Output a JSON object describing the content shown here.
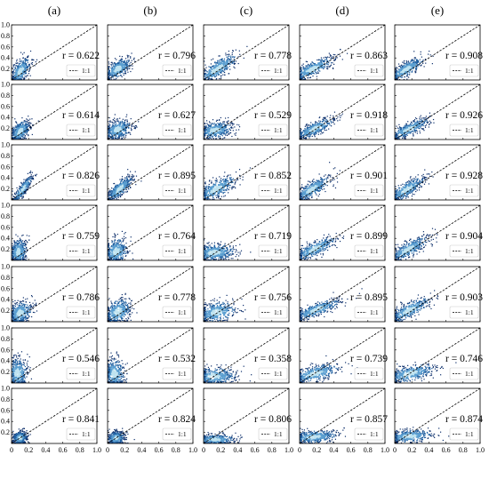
{
  "chart_data": {
    "type": "scatter",
    "column_labels": [
      "(a)",
      "(b)",
      "(c)",
      "(d)",
      "(e)"
    ],
    "x_tick_labels": [
      "0",
      "0.2",
      "0.4",
      "0.6",
      "0.8",
      "1.0"
    ],
    "y_tick_labels": [
      "0.2",
      "0.4",
      "0.6",
      "0.8",
      "1.0"
    ],
    "xlim": [
      0,
      1.0
    ],
    "ylim": [
      0,
      1.0
    ],
    "r_prefix": "r = ",
    "legend_label": "1:1",
    "r_values": [
      [
        "0.622",
        "0.796",
        "0.778",
        "0.863",
        "0.908"
      ],
      [
        "0.614",
        "0.627",
        "0.529",
        "0.918",
        "0.926"
      ],
      [
        "0.826",
        "0.895",
        "0.852",
        "0.901",
        "0.928"
      ],
      [
        "0.759",
        "0.764",
        "0.719",
        "0.899",
        "0.904"
      ],
      [
        "0.786",
        "0.778",
        "0.756",
        "0.895",
        "0.903"
      ],
      [
        "0.546",
        "0.532",
        "0.358",
        "0.739",
        "0.746"
      ],
      [
        "0.841",
        "0.824",
        "0.806",
        "0.857",
        "0.874"
      ]
    ],
    "density_clusters": [
      [
        [
          0.1,
          0.15,
          0.06,
          0.13,
          0.6
        ],
        [
          0.12,
          0.2,
          0.08,
          0.1,
          0.6
        ],
        [
          0.16,
          0.2,
          0.12,
          0.14,
          0.8
        ],
        [
          0.15,
          0.2,
          0.13,
          0.11,
          0.8
        ],
        [
          0.13,
          0.19,
          0.11,
          0.11,
          0.8
        ]
      ],
      [
        [
          0.1,
          0.15,
          0.06,
          0.1,
          0.5
        ],
        [
          0.12,
          0.18,
          0.08,
          0.09,
          0.3
        ],
        [
          0.14,
          0.17,
          0.1,
          0.08,
          0.3
        ],
        [
          0.18,
          0.2,
          0.12,
          0.1,
          0.8
        ],
        [
          0.17,
          0.19,
          0.12,
          0.1,
          0.8
        ]
      ],
      [
        [
          0.13,
          0.19,
          0.06,
          0.13,
          0.9
        ],
        [
          0.14,
          0.2,
          0.08,
          0.12,
          0.8
        ],
        [
          0.15,
          0.2,
          0.12,
          0.12,
          0.7
        ],
        [
          0.14,
          0.19,
          0.11,
          0.12,
          0.8
        ],
        [
          0.14,
          0.19,
          0.11,
          0.12,
          0.8
        ]
      ],
      [
        [
          0.08,
          0.15,
          0.05,
          0.12,
          0.2
        ],
        [
          0.1,
          0.16,
          0.07,
          0.12,
          0.2
        ],
        [
          0.12,
          0.14,
          0.13,
          0.08,
          0.2
        ],
        [
          0.18,
          0.21,
          0.13,
          0.11,
          0.8
        ],
        [
          0.16,
          0.2,
          0.12,
          0.12,
          0.8
        ]
      ],
      [
        [
          0.1,
          0.16,
          0.07,
          0.11,
          0.3
        ],
        [
          0.12,
          0.18,
          0.08,
          0.12,
          0.3
        ],
        [
          0.15,
          0.17,
          0.12,
          0.1,
          0.3
        ],
        [
          0.2,
          0.22,
          0.14,
          0.1,
          0.8
        ],
        [
          0.17,
          0.21,
          0.13,
          0.12,
          0.8
        ]
      ],
      [
        [
          0.07,
          0.18,
          0.06,
          0.14,
          0.0
        ],
        [
          0.08,
          0.17,
          0.06,
          0.14,
          0.0
        ],
        [
          0.12,
          0.12,
          0.14,
          0.08,
          0.1
        ],
        [
          0.18,
          0.17,
          0.15,
          0.09,
          0.6
        ],
        [
          0.18,
          0.17,
          0.15,
          0.09,
          0.6
        ]
      ],
      [
        [
          0.1,
          0.1,
          0.04,
          0.06,
          0.1
        ],
        [
          0.1,
          0.1,
          0.05,
          0.06,
          0.1
        ],
        [
          0.13,
          0.07,
          0.12,
          0.05,
          0.1
        ],
        [
          0.17,
          0.12,
          0.14,
          0.06,
          0.3
        ],
        [
          0.17,
          0.13,
          0.14,
          0.06,
          0.3
        ]
      ]
    ]
  }
}
